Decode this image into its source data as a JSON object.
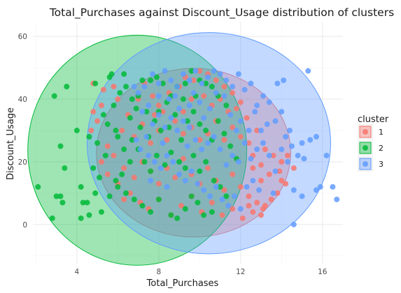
{
  "chart_data": {
    "type": "scatter",
    "title": "Total_Purchases against Discount_Usage distribution of clusters",
    "xlabel": "Total_Purchases",
    "ylabel": "Discount_Usage",
    "xlim": [
      1.85,
      17.0
    ],
    "ylim": [
      -12.5,
      64.5
    ],
    "x_ticks": [
      4,
      8,
      12,
      16
    ],
    "y_ticks": [
      0,
      20,
      40,
      60
    ],
    "grid": true,
    "legend": {
      "title": "cluster",
      "placement": "right",
      "entries": [
        "1",
        "2",
        "3"
      ]
    },
    "colors": {
      "1": "#F8766D",
      "2": "#00BA38",
      "3": "#619CFF"
    },
    "ellipses": [
      {
        "cluster": "1",
        "center": [
          9.7,
          22.9
        ],
        "rx": 4.75,
        "ry": 26.9
      },
      {
        "cluster": "2",
        "center": [
          6.95,
          23.7
        ],
        "rx": 5.35,
        "ry": 36.7
      },
      {
        "cluster": "3",
        "center": [
          10.45,
          25.95
        ],
        "rx": 5.95,
        "ry": 35.3
      }
    ],
    "series": [
      {
        "name": "1",
        "points": [
          [
            4.8,
            45
          ],
          [
            5.3,
            43
          ],
          [
            5.2,
            38
          ],
          [
            5.8,
            44
          ],
          [
            6.0,
            40
          ],
          [
            6.5,
            35
          ],
          [
            7.0,
            40
          ],
          [
            7.3,
            45
          ],
          [
            7.7,
            41
          ],
          [
            8.0,
            38
          ],
          [
            8.5,
            42
          ],
          [
            9.0,
            44
          ],
          [
            9.3,
            47
          ],
          [
            9.7,
            46
          ],
          [
            10.0,
            49
          ],
          [
            10.4,
            48
          ],
          [
            10.8,
            46
          ],
          [
            11.2,
            44
          ],
          [
            11.6,
            42
          ],
          [
            12.0,
            39
          ],
          [
            6.2,
            30
          ],
          [
            6.8,
            28
          ],
          [
            7.2,
            32
          ],
          [
            7.6,
            26
          ],
          [
            8.0,
            30
          ],
          [
            8.4,
            27
          ],
          [
            8.8,
            33
          ],
          [
            9.2,
            29
          ],
          [
            9.6,
            31
          ],
          [
            10.0,
            27
          ],
          [
            10.4,
            29
          ],
          [
            10.8,
            33
          ],
          [
            11.2,
            27
          ],
          [
            11.6,
            31
          ],
          [
            12.0,
            28
          ],
          [
            12.4,
            26
          ],
          [
            12.8,
            30
          ],
          [
            13.2,
            24
          ],
          [
            13.6,
            22
          ],
          [
            14.0,
            20
          ],
          [
            5.8,
            22
          ],
          [
            6.3,
            18
          ],
          [
            6.8,
            15
          ],
          [
            7.2,
            20
          ],
          [
            7.6,
            17
          ],
          [
            8.0,
            13
          ],
          [
            8.4,
            18
          ],
          [
            8.8,
            15
          ],
          [
            9.2,
            21
          ],
          [
            9.6,
            16
          ],
          [
            10.0,
            13
          ],
          [
            10.4,
            18
          ],
          [
            10.8,
            14
          ],
          [
            11.2,
            11
          ],
          [
            11.6,
            16
          ],
          [
            12.0,
            12
          ],
          [
            12.4,
            9
          ],
          [
            12.8,
            7
          ],
          [
            13.1,
            5
          ],
          [
            13.5,
            8
          ],
          [
            13.8,
            10
          ],
          [
            14.2,
            13
          ],
          [
            6.6,
            10
          ],
          [
            7.1,
            7
          ],
          [
            7.5,
            5
          ],
          [
            8.0,
            8
          ],
          [
            8.6,
            3
          ],
          [
            9.1,
            6
          ],
          [
            9.6,
            9
          ],
          [
            10.1,
            4
          ],
          [
            10.6,
            7
          ],
          [
            11.1,
            3
          ],
          [
            11.6,
            5
          ],
          [
            12.1,
            2
          ],
          [
            12.6,
            4
          ],
          [
            13.0,
            3
          ],
          [
            13.2,
            6
          ],
          [
            12.4,
            6
          ],
          [
            11.8,
            37
          ],
          [
            12.3,
            34
          ],
          [
            10.6,
            38
          ],
          [
            9.2,
            36
          ],
          [
            8.2,
            36
          ],
          [
            7.8,
            35
          ],
          [
            4.8,
            36
          ],
          [
            5.0,
            33
          ],
          [
            4.7,
            30
          ],
          [
            5.5,
            25
          ],
          [
            5.2,
            20
          ],
          [
            5.5,
            16
          ],
          [
            6.0,
            13
          ],
          [
            6.3,
            8
          ],
          [
            9.6,
            40
          ],
          [
            10.2,
            41
          ],
          [
            11.0,
            40
          ],
          [
            11.4,
            36
          ],
          [
            12.6,
            22
          ],
          [
            13.0,
            19
          ],
          [
            13.4,
            16
          ],
          [
            13.9,
            17
          ],
          [
            14.3,
            22
          ],
          [
            14.6,
            18
          ],
          [
            14.0,
            14
          ],
          [
            13.0,
            14
          ],
          [
            12.6,
            18
          ]
        ]
      },
      {
        "name": "2",
        "points": [
          [
            2.1,
            12
          ],
          [
            2.8,
            2
          ],
          [
            3.0,
            9
          ],
          [
            3.2,
            9
          ],
          [
            3.3,
            7
          ],
          [
            3.2,
            25
          ],
          [
            3.4,
            18
          ],
          [
            3.5,
            44
          ],
          [
            2.9,
            41
          ],
          [
            4.0,
            30
          ],
          [
            4.2,
            12
          ],
          [
            4.3,
            7
          ],
          [
            4.5,
            7
          ],
          [
            4.2,
            2
          ],
          [
            4.6,
            3
          ],
          [
            4.8,
            18
          ],
          [
            5.1,
            15
          ],
          [
            5.0,
            26
          ],
          [
            5.3,
            35
          ],
          [
            5.5,
            32
          ],
          [
            5.8,
            38
          ],
          [
            6.1,
            42
          ],
          [
            6.4,
            44
          ],
          [
            6.7,
            40
          ],
          [
            7.0,
            41
          ],
          [
            7.2,
            46
          ],
          [
            7.6,
            46
          ],
          [
            7.9,
            47
          ],
          [
            8.2,
            45
          ],
          [
            8.6,
            41
          ],
          [
            8.9,
            44
          ],
          [
            9.3,
            45
          ],
          [
            9.6,
            49
          ],
          [
            10.0,
            46
          ],
          [
            10.3,
            45
          ],
          [
            10.6,
            44
          ],
          [
            10.9,
            41
          ],
          [
            11.3,
            38
          ],
          [
            6.0,
            28
          ],
          [
            6.3,
            24
          ],
          [
            6.6,
            20
          ],
          [
            7.0,
            24
          ],
          [
            7.3,
            20
          ],
          [
            7.6,
            17
          ],
          [
            7.9,
            22
          ],
          [
            8.3,
            19
          ],
          [
            8.6,
            23
          ],
          [
            9.0,
            20
          ],
          [
            9.3,
            18
          ],
          [
            9.7,
            22
          ],
          [
            10.0,
            17
          ],
          [
            10.3,
            20
          ],
          [
            10.7,
            14
          ],
          [
            11.0,
            12
          ],
          [
            11.3,
            9
          ],
          [
            8.6,
            3
          ],
          [
            8.9,
            2
          ],
          [
            9.3,
            5
          ],
          [
            9.6,
            9
          ],
          [
            9.9,
            7
          ],
          [
            10.2,
            3
          ],
          [
            10.6,
            4
          ],
          [
            6.0,
            12
          ],
          [
            6.4,
            10
          ],
          [
            6.8,
            8
          ],
          [
            7.2,
            6
          ],
          [
            7.6,
            4
          ],
          [
            8.0,
            8
          ],
          [
            5.6,
            9
          ],
          [
            5.2,
            4
          ],
          [
            4.9,
            10
          ],
          [
            5.9,
            14
          ],
          [
            6.2,
            16
          ],
          [
            6.6,
            34
          ],
          [
            7.1,
            31
          ],
          [
            7.5,
            28
          ],
          [
            7.8,
            33
          ],
          [
            8.1,
            30
          ],
          [
            8.5,
            31
          ],
          [
            8.8,
            35
          ],
          [
            9.1,
            27
          ],
          [
            9.4,
            33
          ],
          [
            9.7,
            36
          ],
          [
            10.0,
            32
          ],
          [
            10.3,
            30
          ],
          [
            10.6,
            27
          ],
          [
            10.9,
            33
          ],
          [
            11.2,
            29
          ],
          [
            11.5,
            25
          ],
          [
            11.8,
            21
          ],
          [
            6.9,
            37
          ],
          [
            7.4,
            36
          ],
          [
            8.0,
            36
          ],
          [
            8.4,
            39
          ],
          [
            9.2,
            40
          ],
          [
            9.8,
            41
          ],
          [
            5.6,
            47
          ],
          [
            5.9,
            30
          ],
          [
            6.7,
            27
          ],
          [
            5.4,
            22
          ],
          [
            4.9,
            45
          ],
          [
            5.7,
            48
          ],
          [
            6.3,
            48
          ],
          [
            4.6,
            28
          ]
        ]
      },
      {
        "name": "3",
        "points": [
          [
            6.9,
            27
          ],
          [
            7.2,
            36
          ],
          [
            7.7,
            48
          ],
          [
            8.0,
            45
          ],
          [
            8.3,
            49
          ],
          [
            8.6,
            46
          ],
          [
            8.9,
            44
          ],
          [
            9.2,
            48
          ],
          [
            9.5,
            46
          ],
          [
            9.8,
            49
          ],
          [
            10.1,
            45
          ],
          [
            10.4,
            47
          ],
          [
            10.7,
            49
          ],
          [
            11.0,
            48
          ],
          [
            11.3,
            46
          ],
          [
            11.6,
            44
          ],
          [
            11.9,
            48
          ],
          [
            12.2,
            43
          ],
          [
            12.5,
            45
          ],
          [
            12.8,
            38
          ],
          [
            13.1,
            41
          ],
          [
            13.4,
            39
          ],
          [
            13.7,
            33
          ],
          [
            14.0,
            36
          ],
          [
            14.2,
            28
          ],
          [
            14.5,
            25
          ],
          [
            14.8,
            22
          ],
          [
            15.1,
            21
          ],
          [
            15.4,
            27
          ],
          [
            15.7,
            28
          ],
          [
            15.3,
            49
          ],
          [
            16.2,
            22
          ],
          [
            16.5,
            12
          ],
          [
            16.7,
            8
          ],
          [
            15.9,
            12
          ],
          [
            15.7,
            11
          ],
          [
            15.0,
            9
          ],
          [
            14.6,
            11
          ],
          [
            14.3,
            20
          ],
          [
            14.0,
            24
          ],
          [
            13.7,
            17
          ],
          [
            13.4,
            22
          ],
          [
            13.1,
            26
          ],
          [
            12.8,
            24
          ],
          [
            12.5,
            21
          ],
          [
            12.2,
            26
          ],
          [
            11.9,
            20
          ],
          [
            11.6,
            22
          ],
          [
            11.3,
            19
          ],
          [
            11.0,
            24
          ],
          [
            10.7,
            28
          ],
          [
            10.4,
            26
          ],
          [
            10.1,
            24
          ],
          [
            9.8,
            27
          ],
          [
            9.5,
            31
          ],
          [
            9.2,
            33
          ],
          [
            8.9,
            30
          ],
          [
            8.6,
            34
          ],
          [
            8.3,
            31
          ],
          [
            8.0,
            35
          ],
          [
            7.7,
            32
          ],
          [
            7.4,
            28
          ],
          [
            7.1,
            24
          ],
          [
            7.5,
            22
          ],
          [
            7.8,
            20
          ],
          [
            8.1,
            18
          ],
          [
            8.4,
            22
          ],
          [
            8.7,
            20
          ],
          [
            9.0,
            16
          ],
          [
            9.3,
            14
          ],
          [
            9.6,
            17
          ],
          [
            9.9,
            13
          ],
          [
            10.2,
            11
          ],
          [
            10.5,
            9
          ],
          [
            10.8,
            12
          ],
          [
            11.1,
            8
          ],
          [
            11.4,
            6
          ],
          [
            11.7,
            9
          ],
          [
            12.0,
            5
          ],
          [
            12.3,
            12
          ],
          [
            12.6,
            14
          ],
          [
            12.9,
            11
          ],
          [
            14.6,
            0
          ],
          [
            13.6,
            10
          ],
          [
            13.8,
            45
          ],
          [
            14.1,
            46
          ],
          [
            13.0,
            30
          ],
          [
            12.0,
            33
          ],
          [
            11.5,
            35
          ],
          [
            10.5,
            37
          ],
          [
            10.0,
            39
          ],
          [
            9.5,
            38
          ],
          [
            9.0,
            37
          ],
          [
            8.5,
            40
          ],
          [
            8.0,
            41
          ],
          [
            7.5,
            38
          ],
          [
            7.0,
            42
          ],
          [
            6.8,
            44
          ],
          [
            7.3,
            44
          ],
          [
            12.7,
            36
          ],
          [
            13.3,
            32
          ],
          [
            14.4,
            30
          ],
          [
            15.0,
            26
          ],
          [
            11.2,
            41
          ],
          [
            10.8,
            42
          ],
          [
            9.7,
            42
          ],
          [
            8.8,
            41
          ],
          [
            11.8,
            30
          ],
          [
            12.4,
            30
          ],
          [
            10.2,
            34
          ],
          [
            9.4,
            25
          ],
          [
            8.2,
            26
          ],
          [
            7.6,
            14
          ],
          [
            8.4,
            12
          ]
        ]
      }
    ]
  }
}
